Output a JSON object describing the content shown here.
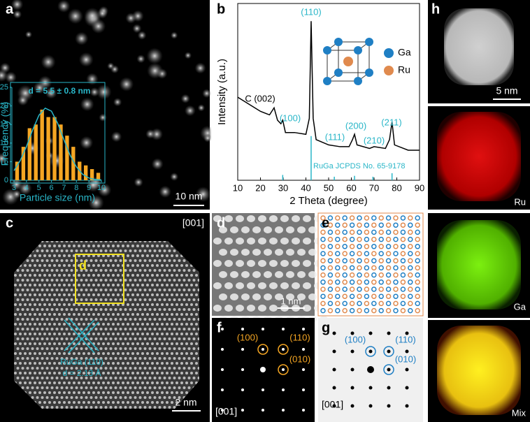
{
  "panels": {
    "a": {
      "label": "a",
      "scale_bar": "10 nm"
    },
    "b": {
      "label": "b"
    },
    "c": {
      "label": "c",
      "zone_axis": "[001]",
      "box_label": "d",
      "lattice_plane": "RuGa (110)",
      "d_spacing": "d = 2.13 Å",
      "scale_bar": "2 nm"
    },
    "d": {
      "label": "d",
      "scale_bar": "1 nm"
    },
    "e": {
      "label": "e"
    },
    "f": {
      "label": "f",
      "spots": [
        "(100)",
        "(110)",
        "(010)"
      ],
      "zone_axis": "[001]"
    },
    "g": {
      "label": "g",
      "spots": [
        "(100)",
        "(110)",
        "(010)"
      ],
      "zone_axis": "[001]"
    },
    "h": {
      "label": "h",
      "scale_bar": "5 nm",
      "maps": [
        "Ru",
        "Ga",
        "Mix"
      ]
    }
  },
  "chart_data": [
    {
      "type": "histogram",
      "annotation": "d = 5.5 ± 0.8 nm",
      "xlabel": "Particle size (nm)",
      "ylabel": "Frequency (%)",
      "bins": [
        3,
        3.5,
        4,
        4.5,
        5,
        5.5,
        6,
        6.5,
        7,
        7.5,
        8,
        8.5,
        9,
        9.5,
        10
      ],
      "values": [
        5,
        9,
        14,
        15,
        19,
        17,
        17,
        15,
        12,
        9,
        5,
        4,
        3,
        2
      ],
      "color": "#f5a623",
      "xlim": [
        3,
        10
      ],
      "xticks": [
        3,
        4,
        5,
        6,
        7,
        8,
        9,
        10
      ],
      "ylim": [
        0,
        25
      ],
      "yticks": [
        0,
        5,
        10,
        15,
        20,
        25
      ],
      "fit": {
        "x": [
          3,
          3.5,
          4,
          4.5,
          5,
          5.5,
          6,
          6.5,
          7,
          7.5,
          8,
          8.5,
          9,
          9.5,
          10
        ],
        "values": [
          2.6,
          5.3,
          9.1,
          13.6,
          17.5,
          19.4,
          18.6,
          15.3,
          10.9,
          6.7,
          3.6,
          1.6,
          0.6,
          0.2,
          0.1
        ],
        "color": "#29b6c8"
      }
    },
    {
      "type": "line",
      "xlabel": "2 Theta (degree)",
      "ylabel": "Intensity (a.u.)",
      "x": [
        10,
        15,
        20,
        24,
        26,
        27.5,
        29,
        29.8,
        31,
        35,
        40,
        41.5,
        42.3,
        43.2,
        44.5,
        50,
        55,
        59,
        60.5,
        61.4,
        62.5,
        68,
        70,
        75,
        76.8,
        77.9,
        79,
        85,
        90
      ],
      "values": [
        47,
        43,
        39,
        37,
        41,
        34,
        32,
        34,
        27,
        27,
        26,
        35,
        90,
        35,
        23,
        20,
        19,
        19,
        23,
        26,
        20,
        18,
        19,
        18,
        23,
        33,
        20,
        17,
        17
      ],
      "color": "#000000",
      "xlim": [
        10,
        90
      ],
      "xticks": [
        10,
        20,
        30,
        40,
        50,
        60,
        70,
        80,
        90
      ],
      "ylim": [
        0,
        100
      ],
      "reference": {
        "name": "RuGa JCPDS No. 65-9178",
        "x": [
          29.8,
          42.3,
          52.5,
          61.4,
          69.5,
          77.9
        ],
        "values": [
          3,
          25,
          2,
          2.5,
          2,
          4
        ],
        "color": "#29b6c8"
      },
      "annotations": [
        "(110)",
        "(100)",
        "C (002)",
        "(111)",
        "(200)",
        "(210)",
        "(211)"
      ],
      "inset_legend": [
        {
          "name": "Ga",
          "color": "#1f7fc4"
        },
        {
          "name": "Ru",
          "color": "#e08a4e"
        }
      ]
    }
  ]
}
